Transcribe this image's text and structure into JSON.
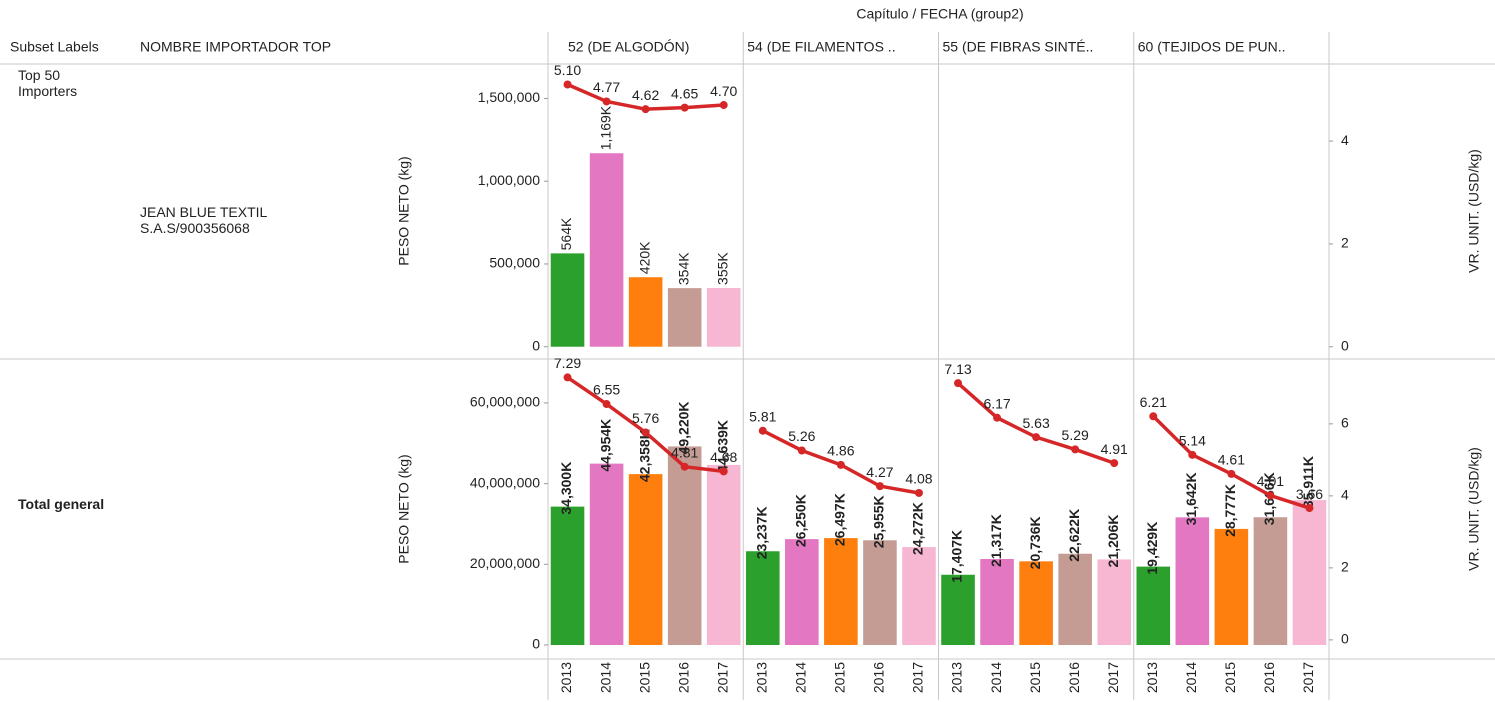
{
  "header": {
    "column_header": "Capítulo  /  FECHA (group2)",
    "row_headers": [
      "Subset Labels",
      "NOMBRE IMPORTADOR TOP"
    ],
    "columns": [
      "52 (DE ALGODÓN)",
      "54 (DE FILAMENTOS ..",
      "55 (DE FIBRAS SINTÉ..",
      "60 (TEJIDOS DE PUN.."
    ]
  },
  "chart_data": [
    {
      "type": "combo",
      "subset_label": "Top 50 Importers",
      "importer": "JEAN BLUE TEXTIL S.A.S/900356068",
      "y_label": "PESO NETO (kg)",
      "y2_label": "VR. UNIT. (USD/kg)",
      "ylim": [
        -50000,
        1690000
      ],
      "yticks": [
        0,
        {
          "value": 500000,
          "label": "500,000"
        },
        {
          "value": 1000000,
          "label": "1,000,000"
        },
        {
          "value": 1500000,
          "label": "1,500,000"
        }
      ],
      "y2lim": [
        -0.16,
        5.44
      ],
      "y2ticks": [
        0,
        2,
        4
      ],
      "categories": [
        "2013",
        "2014",
        "2015",
        "2016",
        "2017"
      ],
      "colors": [
        "#2ca02c",
        "#e377c2",
        "#ff7f0e",
        "#c49c94",
        "#f7b6d2"
      ],
      "line_color": "#d62728",
      "bold_labels": false,
      "panels": [
        {
          "bar_values": [
            564000,
            1169000,
            420000,
            354000,
            355000
          ],
          "bar_value_labels": [
            "564K",
            "1,169K",
            "420K",
            "354K",
            "355K"
          ],
          "line_values": [
            5.1,
            4.77,
            4.62,
            4.65,
            4.7
          ],
          "line_value_labels": [
            "5.10",
            "4.77",
            "4.62",
            "4.65",
            "4.70"
          ]
        }
      ]
    },
    {
      "type": "combo",
      "subset_label": "Total general",
      "y_label": "PESO NETO (kg)",
      "y2_label": "VR. UNIT. (USD/kg)",
      "ylim": [
        -2480000,
        69900000
      ],
      "yticks": [
        0,
        {
          "value": 20000000,
          "label": "20,000,000"
        },
        {
          "value": 40000000,
          "label": "40,000,000"
        },
        {
          "value": 60000000,
          "label": "60,000,000"
        }
      ],
      "y2lim": [
        -0.42,
        7.69
      ],
      "y2ticks": [
        0,
        2,
        4,
        6
      ],
      "categories": [
        "2013",
        "2014",
        "2015",
        "2016",
        "2017"
      ],
      "colors": [
        "#2ca02c",
        "#e377c2",
        "#ff7f0e",
        "#c49c94",
        "#f7b6d2"
      ],
      "line_color": "#d62728",
      "bold_labels": true,
      "panels": [
        {
          "bar_values": [
            34300000,
            44954000,
            42358000,
            49220000,
            44639000
          ],
          "bar_value_labels": [
            "34,300K",
            "44,954K",
            "42,358K",
            "49,220K",
            "44,639K"
          ],
          "line_values": [
            7.29,
            6.55,
            5.76,
            4.81,
            4.68
          ],
          "line_value_labels": [
            "7.29",
            "6.55",
            "5.76",
            "4.81",
            "4.68"
          ]
        },
        {
          "bar_values": [
            23237000,
            26250000,
            26497000,
            25955000,
            24272000
          ],
          "bar_value_labels": [
            "23,237K",
            "26,250K",
            "26,497K",
            "25,955K",
            "24,272K"
          ],
          "line_values": [
            5.81,
            5.26,
            4.86,
            4.27,
            4.08
          ],
          "line_value_labels": [
            "5.81",
            "5.26",
            "4.86",
            "4.27",
            "4.08"
          ]
        },
        {
          "bar_values": [
            17407000,
            21317000,
            20736000,
            22622000,
            21206000
          ],
          "bar_value_labels": [
            "17,407K",
            "21,317K",
            "20,736K",
            "22,622K",
            "21,206K"
          ],
          "line_values": [
            7.13,
            6.17,
            5.63,
            5.29,
            4.91
          ],
          "line_value_labels": [
            "7.13",
            "6.17",
            "5.63",
            "5.29",
            "4.91"
          ]
        },
        {
          "bar_values": [
            19429000,
            31642000,
            28777000,
            31666000,
            35911000
          ],
          "bar_value_labels": [
            "19,429K",
            "31,642K",
            "28,777K",
            "31,666K",
            "35,911K"
          ],
          "line_values": [
            6.21,
            5.14,
            4.61,
            4.01,
            3.66
          ],
          "line_value_labels": [
            "6.21",
            "5.14",
            "4.61",
            "4.01",
            "3.66"
          ]
        }
      ]
    }
  ]
}
